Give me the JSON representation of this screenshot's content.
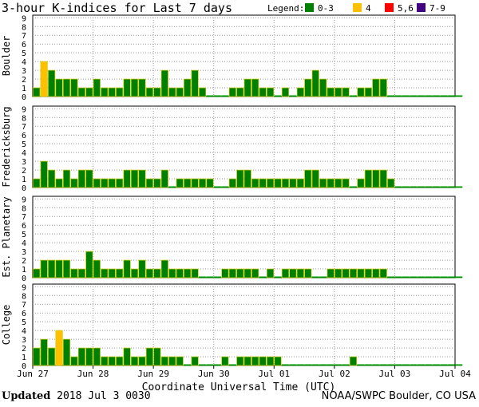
{
  "chart_data": {
    "type": "bar",
    "title": "3-hour K-indices for Last 7 days",
    "legend_label": "Legend:",
    "legend": [
      {
        "label": "0-3",
        "color": "#008000"
      },
      {
        "label": "4",
        "color": "#ffc000"
      },
      {
        "label": "5,6",
        "color": "#ff0000"
      },
      {
        "label": "7-9",
        "color": "#400080"
      }
    ],
    "xlabel": "Coordinate Universal Time (UTC)",
    "x_ticks": [
      "Jun 27",
      "Jun 28",
      "Jun 29",
      "Jun 30",
      "Jul 01",
      "Jul 02",
      "Jul 03",
      "Jul 04"
    ],
    "ylim": [
      0,
      9
    ],
    "y_ticks": [
      "0",
      "1",
      "2",
      "3",
      "4",
      "5",
      "6",
      "7",
      "8",
      "9"
    ],
    "grid": true,
    "panels": [
      {
        "name": "Boulder",
        "values": [
          1,
          4,
          3,
          2,
          2,
          2,
          1,
          1,
          2,
          1,
          1,
          1,
          2,
          2,
          2,
          1,
          1,
          3,
          1,
          1,
          2,
          3,
          1,
          0,
          0,
          0,
          1,
          1,
          2,
          2,
          1,
          1,
          0,
          1,
          0,
          1,
          2,
          3,
          2,
          1,
          1,
          1,
          0,
          1,
          1,
          2,
          2,
          0,
          0,
          0,
          0,
          0,
          0,
          0,
          0,
          0,
          0
        ]
      },
      {
        "name": "Fredericksburg",
        "values": [
          1,
          3,
          2,
          1,
          2,
          1,
          2,
          2,
          1,
          1,
          1,
          1,
          2,
          2,
          2,
          1,
          1,
          2,
          0,
          1,
          1,
          1,
          1,
          1,
          0,
          0,
          1,
          2,
          2,
          1,
          1,
          1,
          1,
          1,
          1,
          1,
          2,
          2,
          1,
          1,
          1,
          1,
          0,
          1,
          2,
          2,
          2,
          1,
          0,
          0,
          0,
          0,
          0,
          0,
          0,
          0,
          0
        ]
      },
      {
        "name": "Est. Planetary",
        "values": [
          1,
          2,
          2,
          2,
          2,
          1,
          1,
          3,
          2,
          1,
          1,
          1,
          2,
          1,
          2,
          1,
          1,
          2,
          1,
          1,
          1,
          1,
          0,
          0,
          0,
          1,
          1,
          1,
          1,
          1,
          0,
          1,
          0,
          1,
          1,
          1,
          1,
          0,
          0,
          1,
          1,
          1,
          1,
          1,
          1,
          1,
          1,
          0,
          0,
          0,
          0,
          0,
          0,
          0,
          0,
          0,
          0
        ]
      },
      {
        "name": "College",
        "values": [
          2,
          3,
          2,
          4,
          3,
          1,
          2,
          2,
          2,
          1,
          1,
          1,
          2,
          1,
          1,
          2,
          2,
          1,
          1,
          1,
          0,
          1,
          0,
          0,
          0,
          1,
          0,
          1,
          1,
          1,
          1,
          1,
          1,
          0,
          0,
          0,
          0,
          0,
          0,
          0,
          0,
          0,
          1,
          0,
          0,
          0,
          0,
          0,
          0,
          0,
          0,
          0,
          0,
          0,
          0,
          0,
          0
        ]
      }
    ]
  },
  "footer": {
    "updated_label": "Updated",
    "updated_value": "2018 Jul  3 0030",
    "credit": "NOAA/SWPC Boulder, CO USA"
  }
}
